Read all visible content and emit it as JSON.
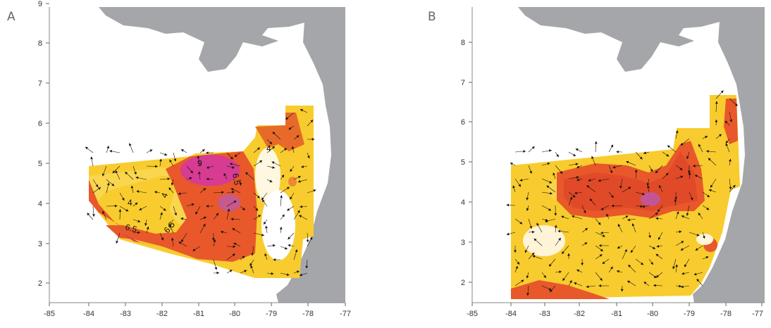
{
  "panels": [
    {
      "letter": "A",
      "x_ticks": [
        "-85",
        "-84",
        "-83",
        "-82",
        "-81",
        "-80",
        "-79",
        "-78",
        "-77"
      ],
      "y_ticks": [
        "9",
        "8",
        "7",
        "6",
        "5",
        "4",
        "3",
        "2"
      ],
      "contour_labels": [
        "9",
        "6.5",
        "4",
        "4",
        "4",
        "6.5",
        "6.5"
      ]
    },
    {
      "letter": "B",
      "x_ticks": [
        "-85",
        "-84",
        "-83",
        "-82",
        "-81",
        "-80",
        "-79",
        "-78",
        "-77"
      ],
      "y_ticks": [
        "8",
        "7",
        "6",
        "5",
        "4",
        "3",
        "2"
      ],
      "contour_labels": []
    }
  ],
  "colors": {
    "land": "#a4a6a9",
    "low": "#fff6d0",
    "mid": "#f9d030",
    "high": "#ea5a26",
    "peak": "#e03a8a",
    "arrow": "#111111"
  }
}
